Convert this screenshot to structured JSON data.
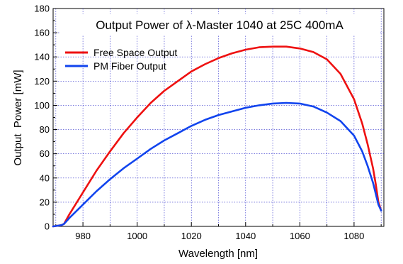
{
  "chart_data": {
    "type": "line",
    "title": "Output Power of λ-Master 1040 at 25C 400mA",
    "xlabel": "Wavelength [nm]",
    "ylabel": "Output  Power [mW]",
    "xlim": [
      969,
      1091
    ],
    "ylim": [
      0,
      180
    ],
    "xticks": [
      980,
      1000,
      1020,
      1040,
      1060,
      1080
    ],
    "yticks": [
      0,
      20,
      40,
      60,
      80,
      100,
      120,
      140,
      160,
      180
    ],
    "grid": true,
    "legend_position": "top-left",
    "series": [
      {
        "name": "Free Space Output",
        "color": "#ee1111",
        "x": [
          969,
          972,
          973,
          975,
          980,
          985,
          990,
          995,
          1000,
          1005,
          1010,
          1015,
          1020,
          1025,
          1030,
          1035,
          1040,
          1045,
          1050,
          1055,
          1060,
          1065,
          1070,
          1075,
          1080,
          1083,
          1085,
          1087,
          1088,
          1089,
          1090
        ],
        "y": [
          0,
          1,
          2,
          10,
          28,
          46,
          62,
          77,
          90,
          102,
          112,
          120,
          128,
          134,
          139,
          143,
          146,
          148,
          148.5,
          148.5,
          147,
          144,
          138,
          126,
          105,
          85,
          68,
          48,
          35,
          20,
          13
        ]
      },
      {
        "name": "PM Fiber Output",
        "color": "#1144ee",
        "x": [
          969,
          972,
          973,
          975,
          980,
          985,
          990,
          995,
          1000,
          1005,
          1010,
          1015,
          1020,
          1025,
          1030,
          1035,
          1040,
          1045,
          1050,
          1055,
          1060,
          1065,
          1070,
          1075,
          1080,
          1083,
          1085,
          1087,
          1088,
          1089,
          1090
        ],
        "y": [
          0,
          1,
          2,
          7,
          18,
          29,
          39,
          48,
          56,
          64,
          71,
          77,
          83,
          88,
          92,
          95,
          98,
          100,
          101.5,
          102,
          101.5,
          99,
          94,
          87,
          75,
          62,
          50,
          36,
          27,
          18,
          13
        ]
      }
    ]
  }
}
